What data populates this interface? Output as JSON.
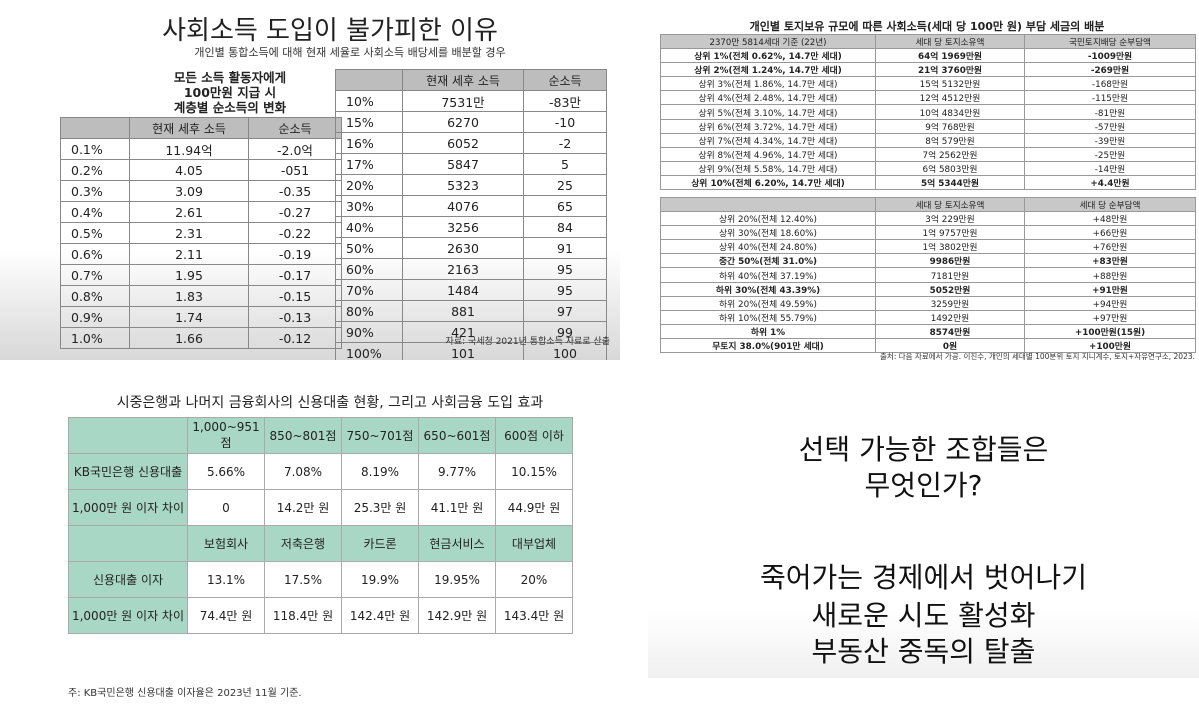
{
  "panel1": {
    "title": "사회소득 도입이 불가피한 이유",
    "subtitle": "개인별 통합소득에 대해 현재 세율로 사회소득 배당세를 배분할 경우",
    "note_lines": [
      "모든 소득 활동자에게",
      "100만원 지급 시",
      "계층별 순소득의 변화"
    ],
    "headers": [
      "",
      "현재 세후 소득",
      "순소득"
    ],
    "left_rows": [
      [
        "0.1%",
        "11.94억",
        "-2.0억"
      ],
      [
        "0.2%",
        "4.05",
        "-051"
      ],
      [
        "0.3%",
        "3.09",
        "-0.35"
      ],
      [
        "0.4%",
        "2.61",
        "-0.27"
      ],
      [
        "0.5%",
        "2.31",
        "-0.22"
      ],
      [
        "0.6%",
        "2.11",
        "-0.19"
      ],
      [
        "0.7%",
        "1.95",
        "-0.17"
      ],
      [
        "0.8%",
        "1.83",
        "-0.15"
      ],
      [
        "0.9%",
        "1.74",
        "-0.13"
      ],
      [
        "1.0%",
        "1.66",
        "-0.12"
      ]
    ],
    "right_rows": [
      [
        "10%",
        "7531만",
        "-83만"
      ],
      [
        "15%",
        "6270",
        "-10"
      ],
      [
        "16%",
        "6052",
        "-2"
      ],
      [
        "17%",
        "5847",
        "5"
      ],
      [
        "20%",
        "5323",
        "25"
      ],
      [
        "30%",
        "4076",
        "65"
      ],
      [
        "40%",
        "3256",
        "84"
      ],
      [
        "50%",
        "2630",
        "91"
      ],
      [
        "60%",
        "2163",
        "95"
      ],
      [
        "70%",
        "1484",
        "95"
      ],
      [
        "80%",
        "881",
        "97"
      ],
      [
        "90%",
        "421",
        "99"
      ],
      [
        "100%",
        "101",
        "100"
      ]
    ],
    "source": "자료: 국세청 2021년 통합소득 자료로 산출"
  },
  "panel2": {
    "title": "개인별 토지보유 규모에 따른 사회소득(세대 당 100만 원) 부담 세금의 배분",
    "top_headers": [
      "2370만 5814세대 기준 (22년)",
      "세대 당 토지소유액",
      "국민토지배당 순부담액"
    ],
    "top_rows": [
      [
        "상위 1%(전체 0.62%, 14.7만 세대)",
        "64억 1969만원",
        "-1009만원"
      ],
      [
        "상위 2%(전체 1.24%, 14.7만 세대)",
        "21억 3760만원",
        "-269만원"
      ],
      [
        "상위 3%(전체 1.86%, 14.7만 세대)",
        "15억 5132만원",
        "-168만원"
      ],
      [
        "상위 4%(전체 2.48%, 14.7만 세대)",
        "12억 4512만원",
        "-115만원"
      ],
      [
        "상위 5%(전체 3.10%, 14.7만 세대)",
        "10억 4834만원",
        "-81만원"
      ],
      [
        "상위 6%(전체 3.72%, 14.7만 세대)",
        "9억 768만원",
        "-57만원"
      ],
      [
        "상위 7%(전체 4.34%, 14.7만 세대)",
        "8억 579만원",
        "-39만원"
      ],
      [
        "상위 8%(전체 4.96%, 14.7만 세대)",
        "7억 2562만원",
        "-25만원"
      ],
      [
        "상위 9%(전체 5.58%, 14.7만 세대)",
        "6억 5803만원",
        "-14만원"
      ],
      [
        "상위 10%(전체 6.20%, 14.7만 세대)",
        "5억 5344만원",
        "+4.4만원"
      ]
    ],
    "bottom_headers": [
      "",
      "세대 당 토지소유액",
      "세대 당 순부담액"
    ],
    "bottom_rows": [
      [
        "상위 20%(전체 12.40%)",
        "3억 229만원",
        "+48만원"
      ],
      [
        "상위 30%(전체 18.60%)",
        "1억 9757만원",
        "+66만원"
      ],
      [
        "상위 40%(전체 24.80%)",
        "1억 3802만원",
        "+76만원"
      ],
      [
        "중간 50%(전체 31.0%)",
        "9986만원",
        "+83만원"
      ],
      [
        "하위 40%(전체 37.19%)",
        "7181만원",
        "+88만원"
      ],
      [
        "하위 30%(전체 43.39%)",
        "5052만원",
        "+91만원"
      ],
      [
        "하위 20%(전체 49.59%)",
        "3259만원",
        "+94만원"
      ],
      [
        "하위 10%(전체 55.79%)",
        "1492만원",
        "+97만원"
      ],
      [
        "하위 1%",
        "8574만원",
        "+100만원(15원)"
      ],
      [
        "무토지 38.0%(901만 세대)",
        "0원",
        "+100만원"
      ]
    ],
    "source": "출처: 다음 자료에서 가공. 이진수, 개인의 세대별 100분위 토지 지니계수, 토지+자유연구소, 2023."
  },
  "panel3": {
    "title": "시중은행과 나머지 금융회사의 신용대출 현황, 그리고 사회금융 도입 효과",
    "header1": [
      "",
      "1,000~951점",
      "850~801점",
      "750~701점",
      "650~601점",
      "600점 이하"
    ],
    "row1": [
      "KB국민은행 신용대출",
      "5.66%",
      "7.08%",
      "8.19%",
      "9.77%",
      "10.15%"
    ],
    "row2": [
      "1,000만 원 이자 차이",
      "0",
      "14.2만 원",
      "25.3만 원",
      "41.1만 원",
      "44.9만 원"
    ],
    "header2": [
      "",
      "보험회사",
      "저축은행",
      "카드론",
      "현금서비스",
      "대부업체"
    ],
    "row3": [
      "신용대출 이자",
      "13.1%",
      "17.5%",
      "19.9%",
      "19.95%",
      "20%"
    ],
    "row4": [
      "1,000만 원 이자 차이",
      "74.4만 원",
      "118.4만 원",
      "142.4만 원",
      "142.9만 원",
      "143.4만 원"
    ],
    "note": "주: KB국민은행 신용대출 이자율은 2023년 11월 기준."
  },
  "panel4": {
    "question_lines": [
      "선택 가능한 조합들은",
      "무엇인가?"
    ],
    "answer_lines": [
      "죽어가는 경제에서 벗어나기",
      "새로운 시도 활성화",
      "부동산 중독의 탈출"
    ]
  }
}
